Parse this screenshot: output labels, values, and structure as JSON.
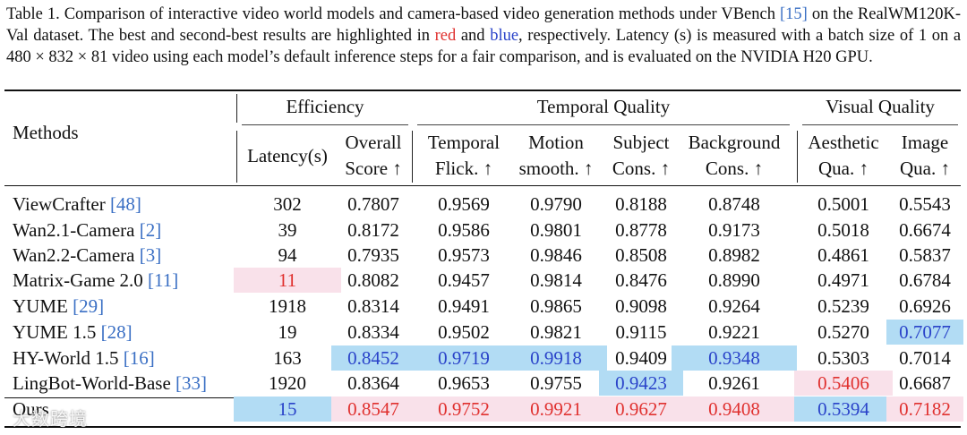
{
  "caption": {
    "label": "Table 1.",
    "text1": "Comparison of interactive video world models and camera-based video generation methods under VBench",
    "cite1": "[15]",
    "text2": "on the RealWM120K-Val dataset. The best and second-best results are highlighted in",
    "red_word": "red",
    "and_word": "and",
    "blue_word": "blue",
    "text3": ", respectively. Latency (s) is measured with a batch size of 1 on a 480 × 832 × 81 video using each model’s default inference steps for a fair comparison, and is evaluated on the NVIDIA H20 GPU."
  },
  "header": {
    "methods": "Methods",
    "groups": {
      "efficiency": "Efficiency",
      "temporal": "Temporal Quality",
      "visual": "Visual Quality"
    },
    "columns": [
      {
        "line1": "Latency(s)",
        "line2": ""
      },
      {
        "line1": "Overall",
        "line2": "Score ↑"
      },
      {
        "line1": "Temporal",
        "line2": "Flick. ↑"
      },
      {
        "line1": "Motion",
        "line2": "smooth. ↑"
      },
      {
        "line1": "Subject",
        "line2": "Cons. ↑"
      },
      {
        "line1": "Background",
        "line2": "Cons. ↑"
      },
      {
        "line1": "Aesthetic",
        "line2": "Qua. ↑"
      },
      {
        "line1": "Image",
        "line2": "Qua. ↑"
      }
    ]
  },
  "rows": [
    {
      "name": "ViewCrafter",
      "cite": "[48]",
      "values": [
        "302",
        "0.7807",
        "0.9569",
        "0.9790",
        "0.8188",
        "0.8748",
        "0.5001",
        "0.5543"
      ]
    },
    {
      "name": "Wan2.1-Camera",
      "cite": "[2]",
      "values": [
        "39",
        "0.8172",
        "0.9586",
        "0.9801",
        "0.8778",
        "0.9173",
        "0.5018",
        "0.6674"
      ]
    },
    {
      "name": "Wan2.2-Camera",
      "cite": "[3]",
      "values": [
        "94",
        "0.7935",
        "0.9573",
        "0.9846",
        "0.8508",
        "0.8982",
        "0.4861",
        "0.5837"
      ]
    },
    {
      "name": "Matrix-Game 2.0",
      "cite": "[11]",
      "values": [
        "11",
        "0.8082",
        "0.9457",
        "0.9814",
        "0.8476",
        "0.8990",
        "0.4971",
        "0.6784"
      ]
    },
    {
      "name": "YUME",
      "cite": "[29]",
      "values": [
        "1918",
        "0.8314",
        "0.9491",
        "0.9865",
        "0.9098",
        "0.9264",
        "0.5239",
        "0.6926"
      ]
    },
    {
      "name": "YUME 1.5",
      "cite": "[28]",
      "values": [
        "19",
        "0.8334",
        "0.9502",
        "0.9821",
        "0.9115",
        "0.9221",
        "0.5270",
        "0.7077"
      ]
    },
    {
      "name": "HY-World 1.5",
      "cite": "[16]",
      "values": [
        "163",
        "0.8452",
        "0.9719",
        "0.9918",
        "0.9409",
        "0.9348",
        "0.5303",
        "0.7014"
      ]
    },
    {
      "name": "LingBot-World-Base",
      "cite": "[33]",
      "values": [
        "1920",
        "0.8364",
        "0.9653",
        "0.9755",
        "0.9423",
        "0.9261",
        "0.5406",
        "0.6687"
      ]
    },
    {
      "name": "Ours",
      "cite": "",
      "values": [
        "15",
        "0.8547",
        "0.9752",
        "0.9921",
        "0.9627",
        "0.9408",
        "0.5394",
        "0.7182"
      ]
    }
  ],
  "highlights": [
    {
      "row": 3,
      "col": 0,
      "rank": "best"
    },
    {
      "row": 5,
      "col": 7,
      "rank": "second"
    },
    {
      "row": 6,
      "col": 1,
      "rank": "second"
    },
    {
      "row": 6,
      "col": 2,
      "rank": "second"
    },
    {
      "row": 6,
      "col": 3,
      "rank": "second"
    },
    {
      "row": 6,
      "col": 5,
      "rank": "second"
    },
    {
      "row": 7,
      "col": 4,
      "rank": "second"
    },
    {
      "row": 7,
      "col": 6,
      "rank": "best"
    },
    {
      "row": 8,
      "col": 0,
      "rank": "second"
    },
    {
      "row": 8,
      "col": 1,
      "rank": "best"
    },
    {
      "row": 8,
      "col": 2,
      "rank": "best"
    },
    {
      "row": 8,
      "col": 3,
      "rank": "best"
    },
    {
      "row": 8,
      "col": 4,
      "rank": "best"
    },
    {
      "row": 8,
      "col": 5,
      "rank": "best"
    },
    {
      "row": 8,
      "col": 6,
      "rank": "second"
    },
    {
      "row": 8,
      "col": 7,
      "rank": "best"
    }
  ],
  "colors": {
    "best_text": "#e0312f",
    "best_bg": "#f9e1ea",
    "second_text": "#2a43c9",
    "second_bg": "#b2dcf4",
    "cite": "#3a6fc4"
  },
  "watermark": "大数跨境"
}
